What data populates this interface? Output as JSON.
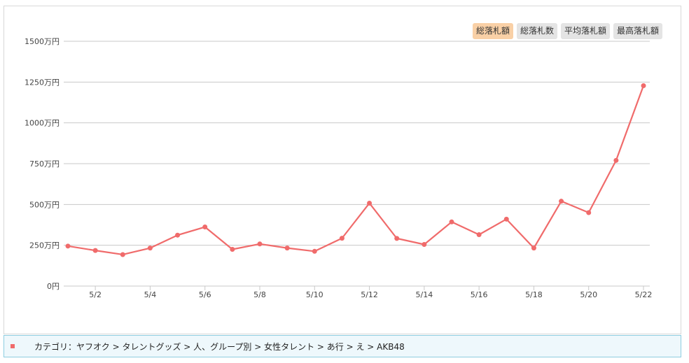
{
  "tabs": [
    {
      "label": "総落札額",
      "active": true
    },
    {
      "label": "総落札数",
      "active": false
    },
    {
      "label": "平均落札額",
      "active": false
    },
    {
      "label": "最高落札額",
      "active": false
    }
  ],
  "breadcrumb": "カテゴリ：ヤフオク > タレントグッズ > 人、グループ別 > 女性タレント > あ行 > え > AKB48",
  "colors": {
    "line": "#f06b6b",
    "grid": "#c8c8c8",
    "active_tab": "#f9d0a6"
  },
  "chart_data": {
    "type": "line",
    "x": [
      "5/1",
      "5/2",
      "5/3",
      "5/4",
      "5/5",
      "5/6",
      "5/7",
      "5/8",
      "5/9",
      "5/10",
      "5/11",
      "5/12",
      "5/13",
      "5/14",
      "5/15",
      "5/16",
      "5/17",
      "5/18",
      "5/19",
      "5/20",
      "5/21",
      "5/22"
    ],
    "x_tick_labels": [
      "5/2",
      "5/4",
      "5/6",
      "5/8",
      "5/10",
      "5/12",
      "5/14",
      "5/16",
      "5/18",
      "5/20",
      "5/22"
    ],
    "series": [
      {
        "values": [
          245,
          218,
          193,
          233,
          312,
          362,
          225,
          258,
          233,
          213,
          293,
          508,
          292,
          255,
          393,
          315,
          410,
          233,
          520,
          450,
          770,
          1228
        ]
      }
    ],
    "y_ticks": [
      0,
      250,
      500,
      750,
      1000,
      1250,
      1500
    ],
    "y_tick_labels": [
      "0円",
      "250万円",
      "500万円",
      "750万円",
      "1000万円",
      "1250万円",
      "1500万円"
    ],
    "ylim": [
      0,
      1500
    ],
    "grid": true
  }
}
